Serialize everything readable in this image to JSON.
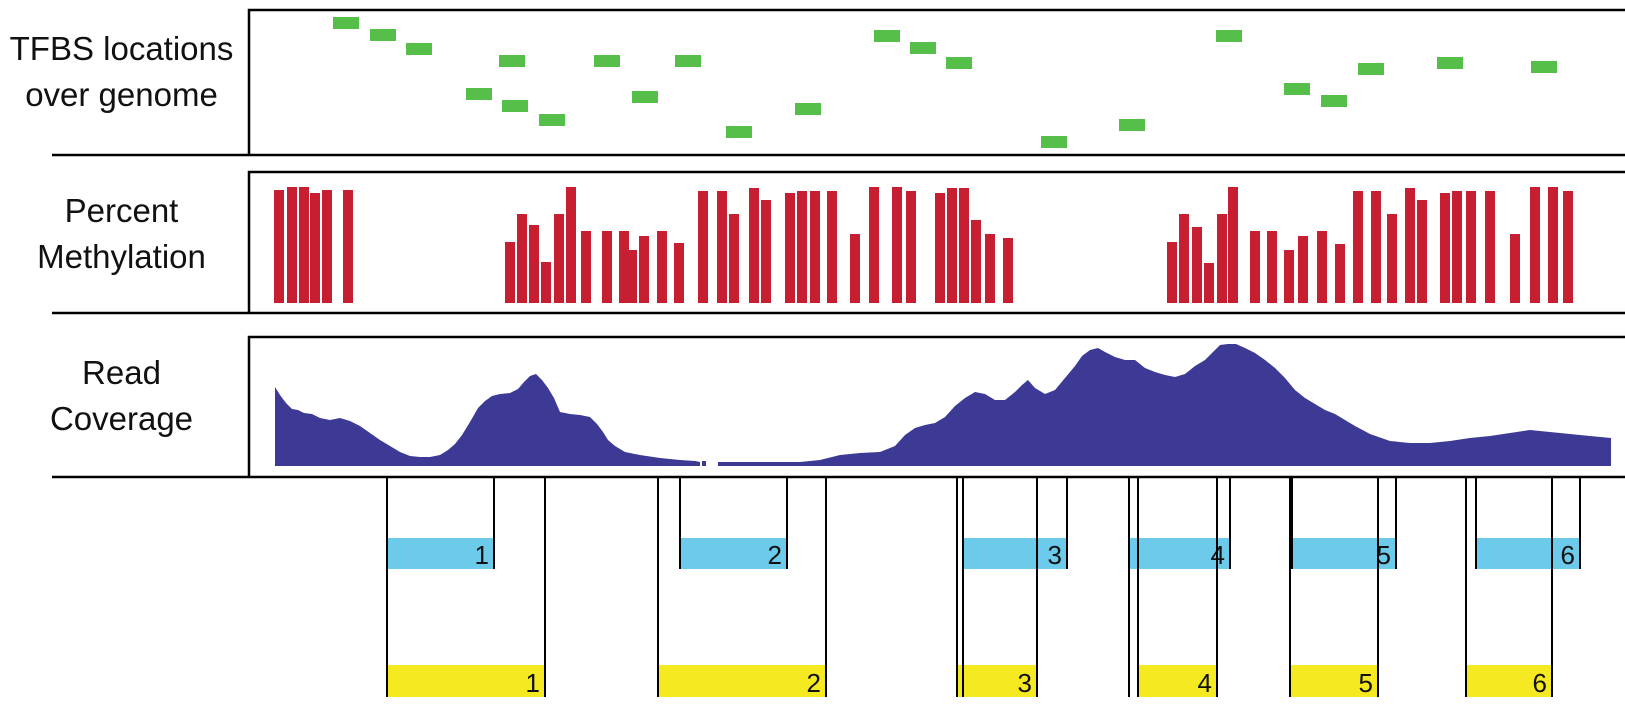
{
  "tracks": {
    "tfbs": {
      "label_line1": "TFBS locations",
      "label_line2": "over genome"
    },
    "methylation": {
      "label_line1": "Percent",
      "label_line2": "Methylation"
    },
    "coverage": {
      "label_line1": "Read",
      "label_line2": "Coverage"
    }
  },
  "colors": {
    "tfbs": "#56bf4a",
    "methylation": "#c81e32",
    "coverage": "#3d3a96",
    "seg_blue": "#6ccbea",
    "seg_yellow": "#f5ea22",
    "frame": "#000000"
  },
  "segments": {
    "blue": [
      "1",
      "2",
      "3",
      "4",
      "5",
      "6"
    ],
    "yellow": [
      "1",
      "2",
      "3",
      "4",
      "5",
      "6"
    ]
  }
}
